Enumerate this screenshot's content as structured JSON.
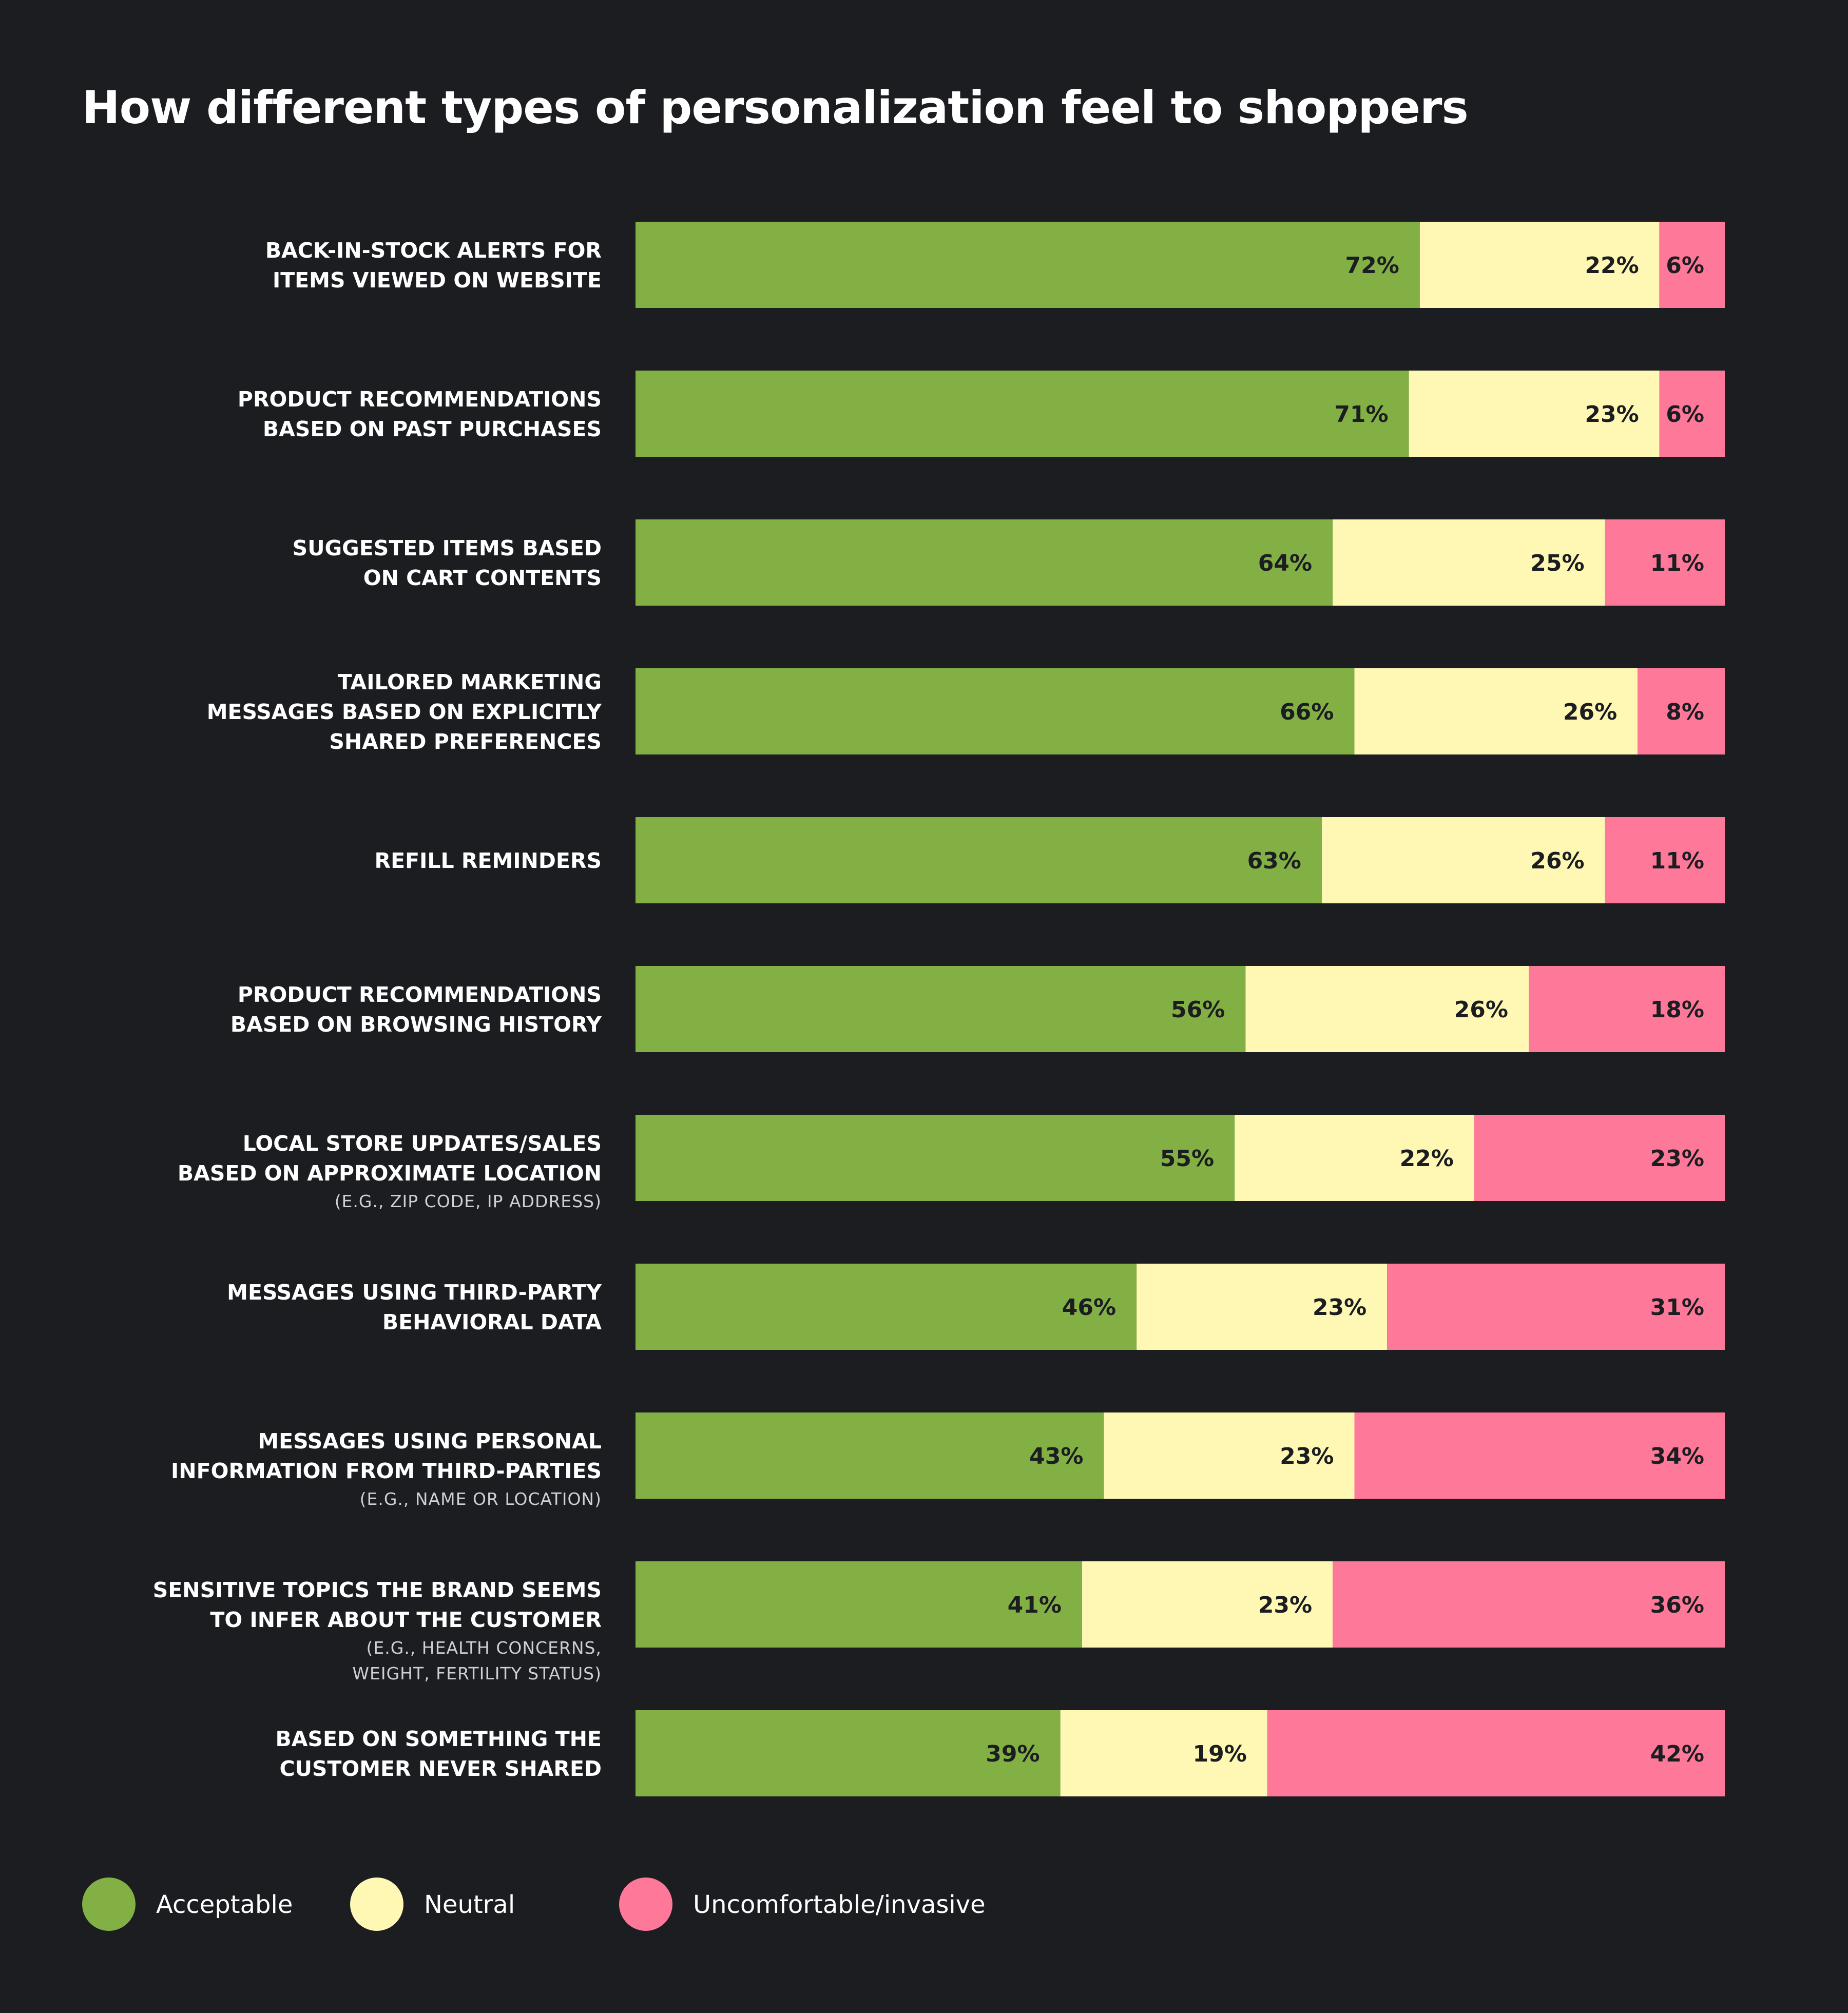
{
  "chart_data": {
    "type": "bar",
    "orientation": "horizontal",
    "stacked": true,
    "title": "How different types of personalization feel to shoppers",
    "categories": [
      {
        "lines": [
          "BACK-IN-STOCK ALERTS FOR",
          "ITEMS VIEWED ON WEBSITE"
        ],
        "note": []
      },
      {
        "lines": [
          "PRODUCT RECOMMENDATIONS",
          "BASED ON PAST PURCHASES"
        ],
        "note": []
      },
      {
        "lines": [
          "SUGGESTED ITEMS BASED",
          "ON CART CONTENTS"
        ],
        "note": []
      },
      {
        "lines": [
          "TAILORED MARKETING",
          "MESSAGES BASED ON EXPLICITLY",
          "SHARED PREFERENCES"
        ],
        "note": []
      },
      {
        "lines": [
          "REFILL REMINDERS"
        ],
        "note": []
      },
      {
        "lines": [
          "PRODUCT RECOMMENDATIONS",
          "BASED ON BROWSING HISTORY"
        ],
        "note": []
      },
      {
        "lines": [
          "LOCAL STORE UPDATES/SALES",
          "BASED ON APPROXIMATE LOCATION"
        ],
        "note": [
          "(E.G., ZIP CODE, IP ADDRESS)"
        ]
      },
      {
        "lines": [
          "MESSAGES USING THIRD-PARTY",
          "BEHAVIORAL DATA"
        ],
        "note": []
      },
      {
        "lines": [
          "MESSAGES USING PERSONAL",
          "INFORMATION FROM THIRD-PARTIES"
        ],
        "note": [
          "(E.G., NAME OR LOCATION)"
        ]
      },
      {
        "lines": [
          "SENSITIVE TOPICS THE BRAND SEEMS",
          "TO INFER ABOUT THE CUSTOMER"
        ],
        "note": [
          "(E.G., HEALTH CONCERNS,",
          "WEIGHT, FERTILITY STATUS)"
        ]
      },
      {
        "lines": [
          "BASED ON SOMETHING THE",
          "CUSTOMER NEVER SHARED"
        ],
        "note": []
      }
    ],
    "series": [
      {
        "name": "Acceptable",
        "color": "#83b044",
        "values": [
          72,
          71,
          64,
          66,
          63,
          56,
          55,
          46,
          43,
          41,
          39
        ]
      },
      {
        "name": "Neutral",
        "color": "#fef8b4",
        "values": [
          22,
          23,
          25,
          26,
          26,
          26,
          22,
          23,
          23,
          23,
          19
        ]
      },
      {
        "name": "Uncomfortable/invasive",
        "color": "#fe7899",
        "values": [
          6,
          6,
          11,
          8,
          11,
          18,
          23,
          31,
          34,
          36,
          42
        ]
      }
    ],
    "value_suffix": "%",
    "xlim": [
      0,
      100
    ],
    "grid": false,
    "legend_position": "bottom-left"
  }
}
